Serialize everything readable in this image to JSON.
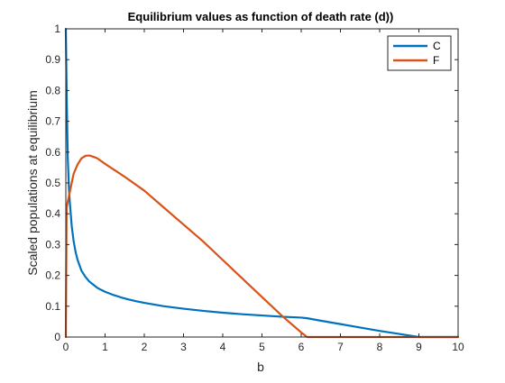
{
  "chart_data": {
    "type": "line",
    "title": "Equilibrium values as function of death rate (d))",
    "xlabel": "b",
    "ylabel": "Scaled populations at equilibrium",
    "xlim": [
      0,
      10
    ],
    "ylim": [
      0,
      1
    ],
    "xticks": [
      "0",
      "1",
      "2",
      "3",
      "4",
      "5",
      "6",
      "7",
      "8",
      "9",
      "10"
    ],
    "yticks": [
      "0",
      "0.1",
      "0.2",
      "0.3",
      "0.4",
      "0.5",
      "0.6",
      "0.7",
      "0.8",
      "0.9",
      "1"
    ],
    "grid": false,
    "legend_position": "top-right",
    "series": [
      {
        "name": "C",
        "color": "#0072BD",
        "x": [
          0.0,
          0.02,
          0.05,
          0.08,
          0.1,
          0.15,
          0.2,
          0.25,
          0.3,
          0.4,
          0.5,
          0.6,
          0.7,
          0.8,
          0.9,
          1.0,
          1.2,
          1.4,
          1.6,
          1.8,
          2.0,
          2.5,
          3.0,
          3.5,
          4.0,
          4.5,
          5.0,
          5.5,
          6.0,
          6.15,
          6.5,
          7.0,
          7.5,
          8.0,
          8.5,
          9.0,
          9.5,
          10.0
        ],
        "y": [
          1.0,
          0.8,
          0.58,
          0.48,
          0.44,
          0.36,
          0.31,
          0.275,
          0.25,
          0.215,
          0.195,
          0.18,
          0.17,
          0.16,
          0.153,
          0.147,
          0.137,
          0.129,
          0.122,
          0.116,
          0.111,
          0.1,
          0.092,
          0.085,
          0.079,
          0.074,
          0.07,
          0.066,
          0.063,
          0.061,
          0.053,
          0.042,
          0.031,
          0.02,
          0.01,
          0.0,
          0.0,
          0.0
        ]
      },
      {
        "name": "F",
        "color": "#D95319",
        "x": [
          0.0,
          0.02,
          0.05,
          0.1,
          0.15,
          0.2,
          0.3,
          0.4,
          0.5,
          0.6,
          0.7,
          0.8,
          1.0,
          1.5,
          2.0,
          2.5,
          3.0,
          3.5,
          4.0,
          4.5,
          5.0,
          5.5,
          6.0,
          6.15,
          7.0,
          8.0,
          9.0,
          10.0
        ],
        "y": [
          0.0,
          0.42,
          0.44,
          0.47,
          0.5,
          0.53,
          0.56,
          0.58,
          0.588,
          0.589,
          0.585,
          0.58,
          0.562,
          0.52,
          0.475,
          0.42,
          0.365,
          0.31,
          0.25,
          0.19,
          0.13,
          0.07,
          0.015,
          0.0,
          0.0,
          0.0,
          0.0,
          0.0
        ]
      }
    ]
  }
}
